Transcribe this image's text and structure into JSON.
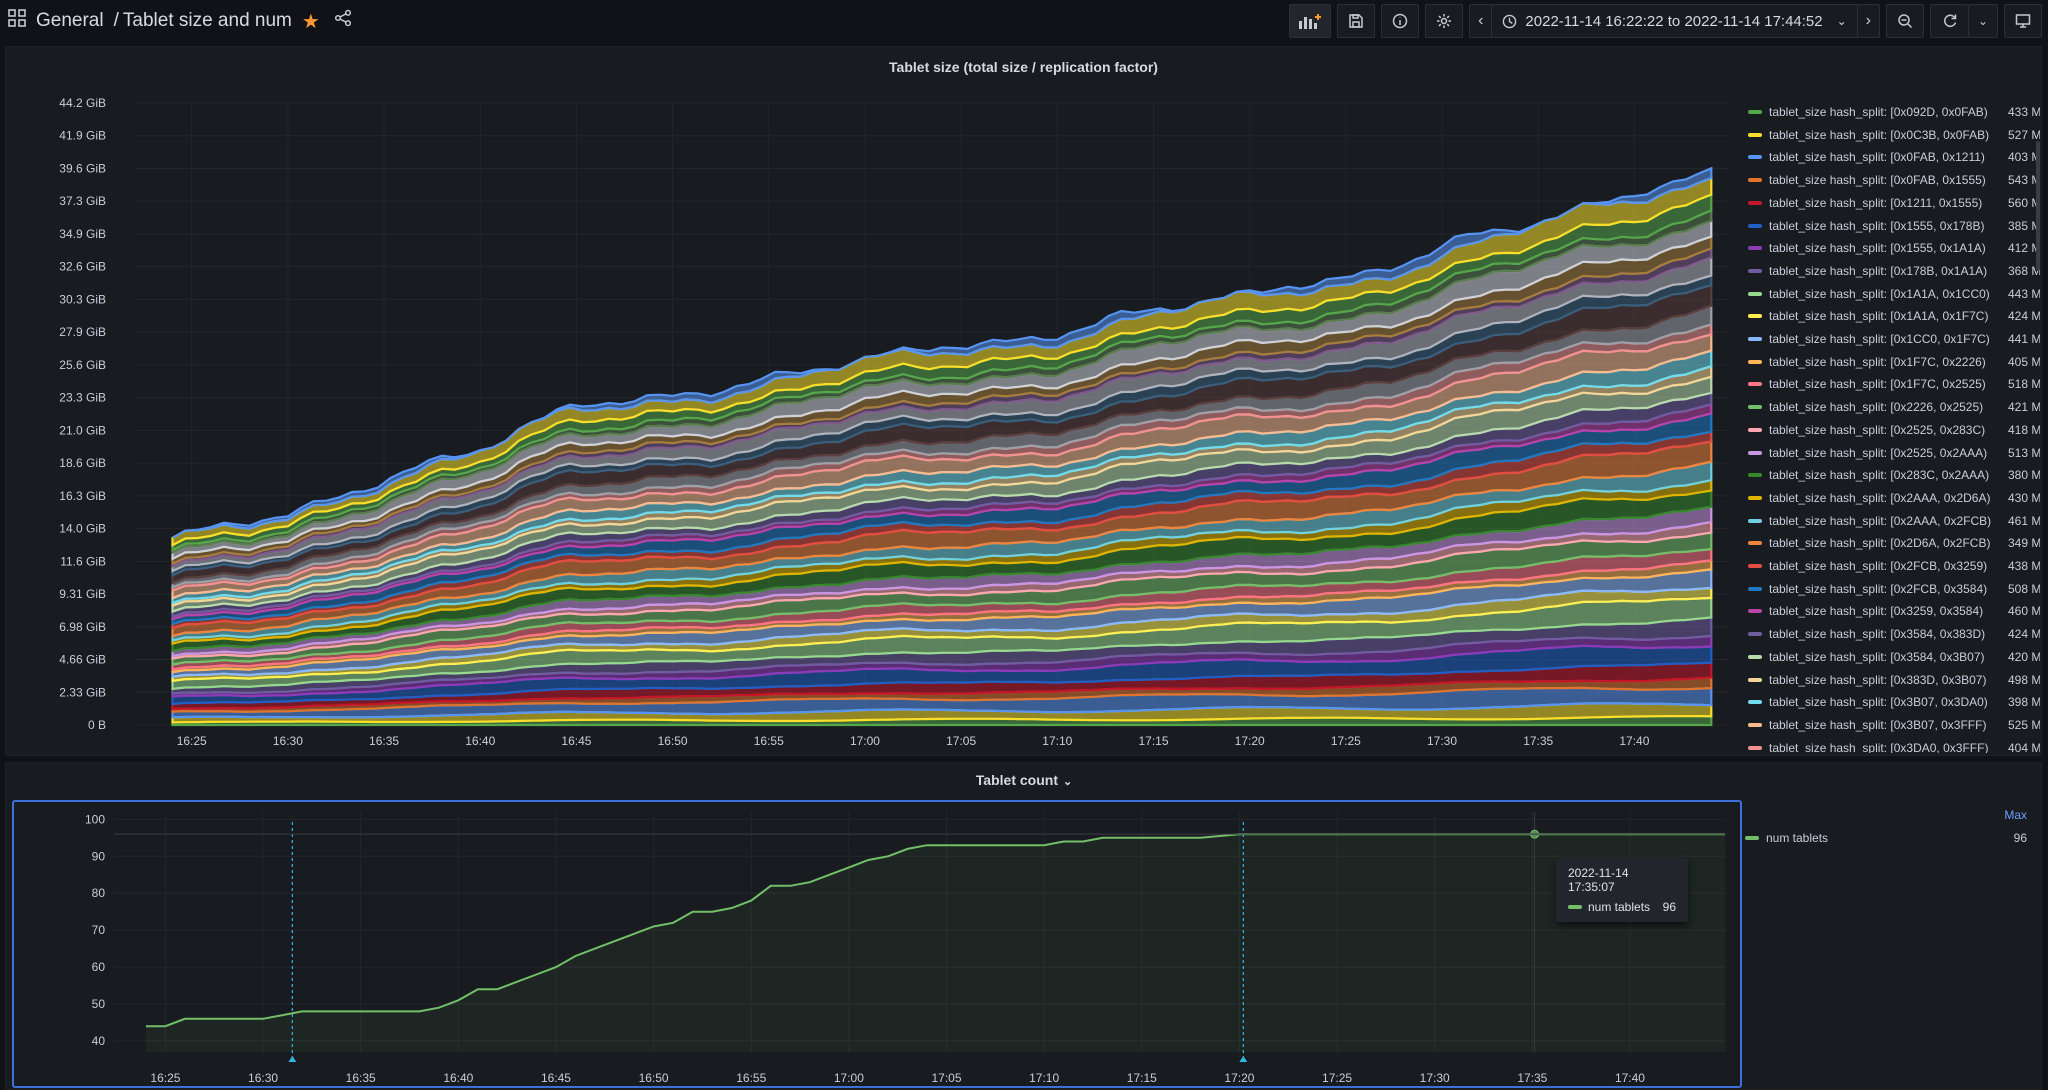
{
  "topbar": {
    "folder": "General",
    "dashboard": "Tablet size and num",
    "time_range": "2022-11-14 16:22:22 to 2022-11-14 17:44:52"
  },
  "colors": {
    "accent": "#3d71d9",
    "green": "#73bf69",
    "star": "#ff9830",
    "cursor": "#33b5e5"
  },
  "size_panel": {
    "title": "Tablet size (total size / replication factor)",
    "y_ticks": [
      "0 B",
      "2.33 GiB",
      "4.66 GiB",
      "6.98 GiB",
      "9.31 GiB",
      "11.6 GiB",
      "14.0 GiB",
      "16.3 GiB",
      "18.6 GiB",
      "21.0 GiB",
      "23.3 GiB",
      "25.6 GiB",
      "27.9 GiB",
      "30.3 GiB",
      "32.6 GiB",
      "34.9 GiB",
      "37.3 GiB",
      "39.6 GiB",
      "41.9 GiB",
      "44.2 GiB"
    ],
    "x_ticks": [
      "16:25",
      "16:30",
      "16:35",
      "16:40",
      "16:45",
      "16:50",
      "16:55",
      "17:00",
      "17:05",
      "17:10",
      "17:15",
      "17:20",
      "17:25",
      "17:30",
      "17:35",
      "17:40"
    ],
    "legend": [
      {
        "name": "tablet_size hash_split: [0x092D, 0x0FAB)",
        "value": "433 M",
        "color": "#56a64b"
      },
      {
        "name": "tablet_size hash_split: [0x0C3B, 0x0FAB)",
        "value": "527 M",
        "color": "#fade2a"
      },
      {
        "name": "tablet_size hash_split: [0x0FAB, 0x1211)",
        "value": "403 M",
        "color": "#5794f2"
      },
      {
        "name": "tablet_size hash_split: [0x0FAB, 0x1555)",
        "value": "543 M",
        "color": "#e0752d"
      },
      {
        "name": "tablet_size hash_split: [0x1211, 0x1555)",
        "value": "560 M",
        "color": "#c4162a"
      },
      {
        "name": "tablet_size hash_split: [0x1555, 0x178B)",
        "value": "385 M",
        "color": "#1f60c4"
      },
      {
        "name": "tablet_size hash_split: [0x1555, 0x1A1A)",
        "value": "412 M",
        "color": "#8f3bb8"
      },
      {
        "name": "tablet_size hash_split: [0x178B, 0x1A1A)",
        "value": "368 M",
        "color": "#705da0"
      },
      {
        "name": "tablet_size hash_split: [0x1A1A, 0x1CC0)",
        "value": "443 M",
        "color": "#96d98d"
      },
      {
        "name": "tablet_size hash_split: [0x1A1A, 0x1F7C)",
        "value": "424 M",
        "color": "#ffee52"
      },
      {
        "name": "tablet_size hash_split: [0x1CC0, 0x1F7C)",
        "value": "441 M",
        "color": "#8ab8ff"
      },
      {
        "name": "tablet_size hash_split: [0x1F7C, 0x2226)",
        "value": "405 M",
        "color": "#ffb357"
      },
      {
        "name": "tablet_size hash_split: [0x1F7C, 0x2525)",
        "value": "518 M",
        "color": "#ff7383"
      },
      {
        "name": "tablet_size hash_split: [0x2226, 0x2525)",
        "value": "421 M",
        "color": "#73bf69"
      },
      {
        "name": "tablet_size hash_split: [0x2525, 0x283C)",
        "value": "418 M",
        "color": "#ffa6b0"
      },
      {
        "name": "tablet_size hash_split: [0x2525, 0x2AAA)",
        "value": "513 M",
        "color": "#ca95e5"
      },
      {
        "name": "tablet_size hash_split: [0x283C, 0x2AAA)",
        "value": "380 M",
        "color": "#37872d"
      },
      {
        "name": "tablet_size hash_split: [0x2AAA, 0x2D6A)",
        "value": "430 M",
        "color": "#e0b400"
      },
      {
        "name": "tablet_size hash_split: [0x2AAA, 0x2FCB)",
        "value": "461 M",
        "color": "#6ed0e0"
      },
      {
        "name": "tablet_size hash_split: [0x2D6A, 0x2FCB)",
        "value": "349 M",
        "color": "#ef843c"
      },
      {
        "name": "tablet_size hash_split: [0x2FCB, 0x3259)",
        "value": "438 M",
        "color": "#e24d42"
      },
      {
        "name": "tablet_size hash_split: [0x2FCB, 0x3584)",
        "value": "508 M",
        "color": "#1f78c1"
      },
      {
        "name": "tablet_size hash_split: [0x3259, 0x3584)",
        "value": "460 M",
        "color": "#ba43a9"
      },
      {
        "name": "tablet_size hash_split: [0x3584, 0x383D)",
        "value": "424 M",
        "color": "#705da0"
      },
      {
        "name": "tablet_size hash_split: [0x3584, 0x3B07)",
        "value": "420 M",
        "color": "#b7dbab"
      },
      {
        "name": "tablet_size hash_split: [0x383D, 0x3B07)",
        "value": "498 M",
        "color": "#f4d598"
      },
      {
        "name": "tablet_size hash_split: [0x3B07, 0x3DA0)",
        "value": "398 M",
        "color": "#70dbed"
      },
      {
        "name": "tablet_size hash_split: [0x3B07, 0x3FFF)",
        "value": "525 M",
        "color": "#f9ba8f"
      },
      {
        "name": "tablet_size hash_split: [0x3DA0, 0x3FFF)",
        "value": "404 M",
        "color": "#f29191"
      }
    ]
  },
  "count_panel": {
    "title": "Tablet count",
    "legend_header": "Max",
    "series_name": "num tablets",
    "series_max": "96",
    "tooltip_time": "2022-11-14 17:35:07",
    "tooltip_value": "96",
    "y_ticks": [
      "40",
      "50",
      "60",
      "70",
      "80",
      "90",
      "100"
    ],
    "x_ticks": [
      "16:25",
      "16:30",
      "16:35",
      "16:40",
      "16:45",
      "16:50",
      "16:55",
      "17:00",
      "17:05",
      "17:10",
      "17:15",
      "17:20",
      "17:25",
      "17:30",
      "17:35",
      "17:40"
    ]
  },
  "chart_data": [
    {
      "type": "area",
      "title": "Tablet size (total size / replication factor)",
      "x_unit": "time",
      "x": [
        "16:24",
        "16:30",
        "16:35",
        "16:40",
        "16:45",
        "16:50",
        "16:55",
        "17:00",
        "17:05",
        "17:10",
        "17:15",
        "17:20",
        "17:25",
        "17:30",
        "17:35",
        "17:40",
        "17:44"
      ],
      "total_gib": [
        13.3,
        15.2,
        17.6,
        19.6,
        22.8,
        23.8,
        24.6,
        26.0,
        27.2,
        28.2,
        29.5,
        30.6,
        32.2,
        34.3,
        35.7,
        37.8,
        40.0
      ],
      "ylim": [
        0,
        44.2
      ],
      "y_unit": "GiB",
      "stacked": true,
      "series_count_shown": 29
    },
    {
      "type": "line",
      "title": "Tablet count",
      "series": [
        {
          "name": "num tablets",
          "x": [
            "16:24",
            "16:25",
            "16:26",
            "16:30",
            "16:31",
            "16:32",
            "16:38",
            "16:39",
            "16:40",
            "16:41",
            "16:42",
            "16:43",
            "16:44",
            "16:45",
            "16:46",
            "16:47",
            "16:48",
            "16:49",
            "16:50",
            "16:51",
            "16:52",
            "16:53",
            "16:54",
            "16:55",
            "16:56",
            "16:57",
            "16:58",
            "16:59",
            "17:00",
            "17:01",
            "17:02",
            "17:03",
            "17:04",
            "17:05",
            "17:06",
            "17:10",
            "17:11",
            "17:12",
            "17:13",
            "17:14",
            "17:18",
            "17:20",
            "17:44"
          ],
          "values": [
            44,
            44,
            46,
            46,
            47,
            48,
            48,
            49,
            51,
            54,
            54,
            56,
            58,
            60,
            63,
            65,
            67,
            69,
            71,
            72,
            75,
            75,
            76,
            78,
            82,
            82,
            83,
            85,
            87,
            89,
            90,
            92,
            93,
            93,
            93,
            93,
            94,
            94,
            95,
            95,
            95,
            96,
            96
          ]
        }
      ],
      "ylim": [
        37,
        102
      ],
      "legend": "right, Max column"
    }
  ]
}
